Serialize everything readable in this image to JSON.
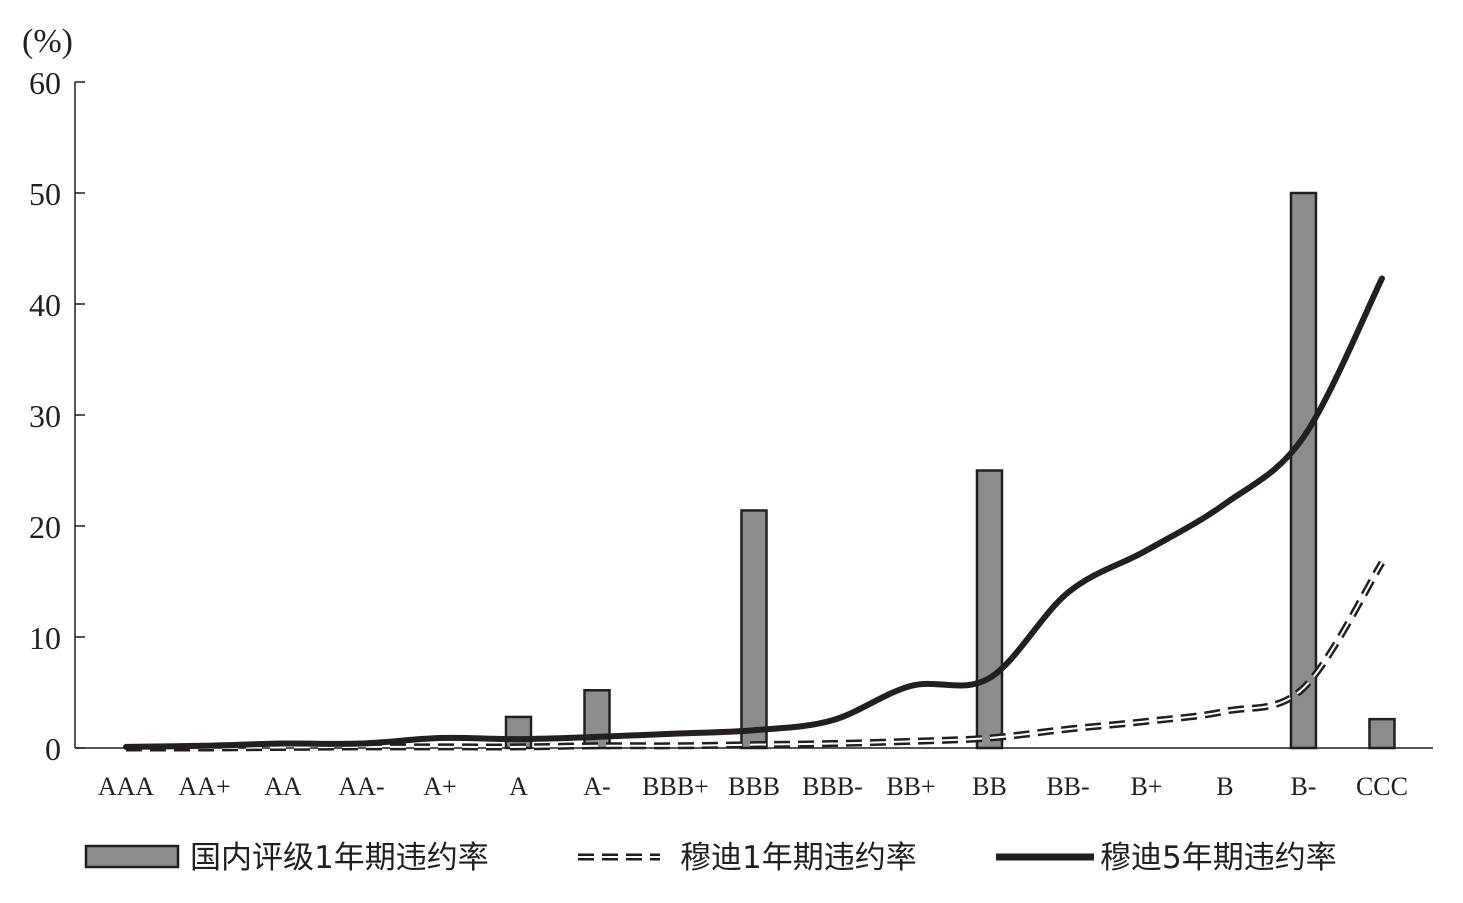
{
  "chart_data": {
    "type": "bar",
    "unit_label": "(%)",
    "ylim": [
      0,
      60
    ],
    "yticks": [
      0,
      10,
      20,
      30,
      40,
      50,
      60
    ],
    "grid": false,
    "legend_position": "bottom",
    "categories": [
      "AAA",
      "AA+",
      "AA",
      "AA-",
      "A+",
      "A",
      "A-",
      "BBB+",
      "BBB",
      "BBB-",
      "BB+",
      "BB",
      "BB-",
      "B+",
      "B",
      "B-",
      "CCC"
    ],
    "series": [
      {
        "name": "国内评级1年期违约率",
        "type": "bar",
        "color": "#8c8c8c",
        "values": [
          0,
          0,
          0,
          0,
          0,
          2.8,
          5.2,
          0,
          21.4,
          0,
          0,
          25.0,
          0,
          0,
          0,
          50.0,
          2.6
        ]
      },
      {
        "name": "穆迪1年期违约率",
        "type": "line",
        "style": "dashed",
        "color": "#231f20",
        "values": [
          0.0,
          0.0,
          0.05,
          0.1,
          0.1,
          0.1,
          0.2,
          0.2,
          0.3,
          0.4,
          0.6,
          0.9,
          1.7,
          2.4,
          3.3,
          5.4,
          16.7
        ]
      },
      {
        "name": "穆迪5年期违约率",
        "type": "line",
        "style": "solid",
        "color": "#231f20",
        "values": [
          0.1,
          0.2,
          0.4,
          0.4,
          0.9,
          0.8,
          1.0,
          1.3,
          1.6,
          2.5,
          5.6,
          6.3,
          14.0,
          17.8,
          22.0,
          28.0,
          42.3
        ]
      }
    ]
  }
}
